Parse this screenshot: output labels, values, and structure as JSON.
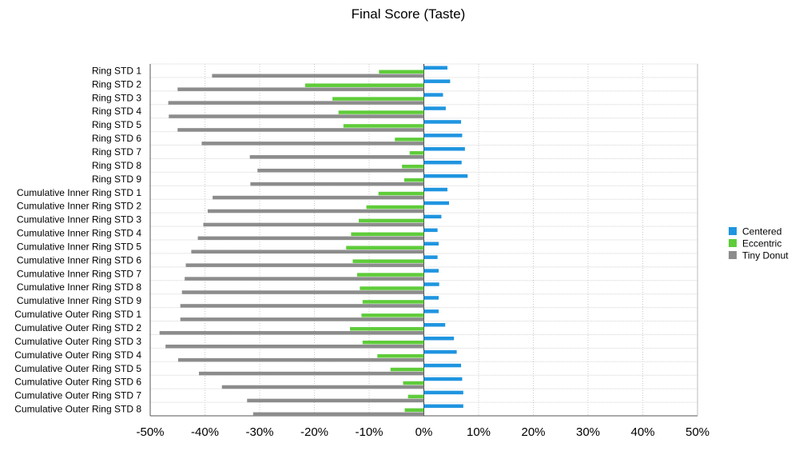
{
  "chart_data": {
    "type": "bar",
    "orientation": "horizontal",
    "title": "Final Score (Taste)",
    "xlabel": "",
    "ylabel": "",
    "xlim": [
      -50,
      50
    ],
    "x_ticks": [
      "-50%",
      "-40%",
      "-30%",
      "-20%",
      "-10%",
      "0%",
      "10%",
      "20%",
      "30%",
      "40%",
      "50%"
    ],
    "grid": true,
    "legend_position": "right",
    "categories": [
      "Ring STD 1",
      "Ring STD 2",
      "Ring STD 3",
      "Ring STD 4",
      "Ring STD 5",
      "Ring STD 6",
      "Ring STD 7",
      "Ring STD 8",
      "Ring STD 9",
      "Cumulative Inner Ring STD 1",
      "Cumulative Inner Ring STD 2",
      "Cumulative Inner Ring STD 3",
      "Cumulative Inner Ring STD 4",
      "Cumulative Inner Ring STD 5",
      "Cumulative Inner Ring STD 6",
      "Cumulative Inner Ring STD 7",
      "Cumulative Inner Ring STD 8",
      "Cumulative Inner Ring STD 9",
      "Cumulative Outer Ring STD 1",
      "Cumulative Outer Ring STD 2",
      "Cumulative Outer Ring STD 3",
      "Cumulative Outer Ring STD 4",
      "Cumulative Outer Ring STD 5",
      "Cumulative Outer Ring STD 6",
      "Cumulative Outer Ring STD 7",
      "Cumulative Outer Ring STD 8"
    ],
    "series": [
      {
        "name": "Centered",
        "color": "#1f95e0",
        "values": [
          4.3,
          4.8,
          3.5,
          4.0,
          6.8,
          7.0,
          7.5,
          6.9,
          8.0,
          4.3,
          4.6,
          3.2,
          2.5,
          2.7,
          2.5,
          2.7,
          2.8,
          2.7,
          2.7,
          3.9,
          5.5,
          6.0,
          6.8,
          7.0,
          7.2,
          7.2
        ]
      },
      {
        "name": "Eccentric",
        "color": "#5fcc3a",
        "values": [
          -8.2,
          -21.7,
          -16.7,
          -15.6,
          -14.7,
          -5.3,
          -2.6,
          -4.0,
          -3.6,
          -8.3,
          -10.5,
          -11.9,
          -13.3,
          -14.2,
          -13.0,
          -12.2,
          -11.7,
          -11.2,
          -11.4,
          -13.5,
          -11.2,
          -8.5,
          -6.1,
          -3.8,
          -2.9,
          -3.5
        ]
      },
      {
        "name": "Tiny Donut",
        "color": "#8c8c8c",
        "values": [
          -38.7,
          -45.0,
          -46.7,
          -46.6,
          -45.0,
          -40.6,
          -31.8,
          -30.4,
          -31.7,
          -38.6,
          -39.5,
          -40.3,
          -41.3,
          -42.5,
          -43.5,
          -43.7,
          -44.2,
          -44.5,
          -44.5,
          -48.3,
          -47.2,
          -44.9,
          -41.1,
          -36.9,
          -32.3,
          -31.2
        ]
      }
    ]
  }
}
